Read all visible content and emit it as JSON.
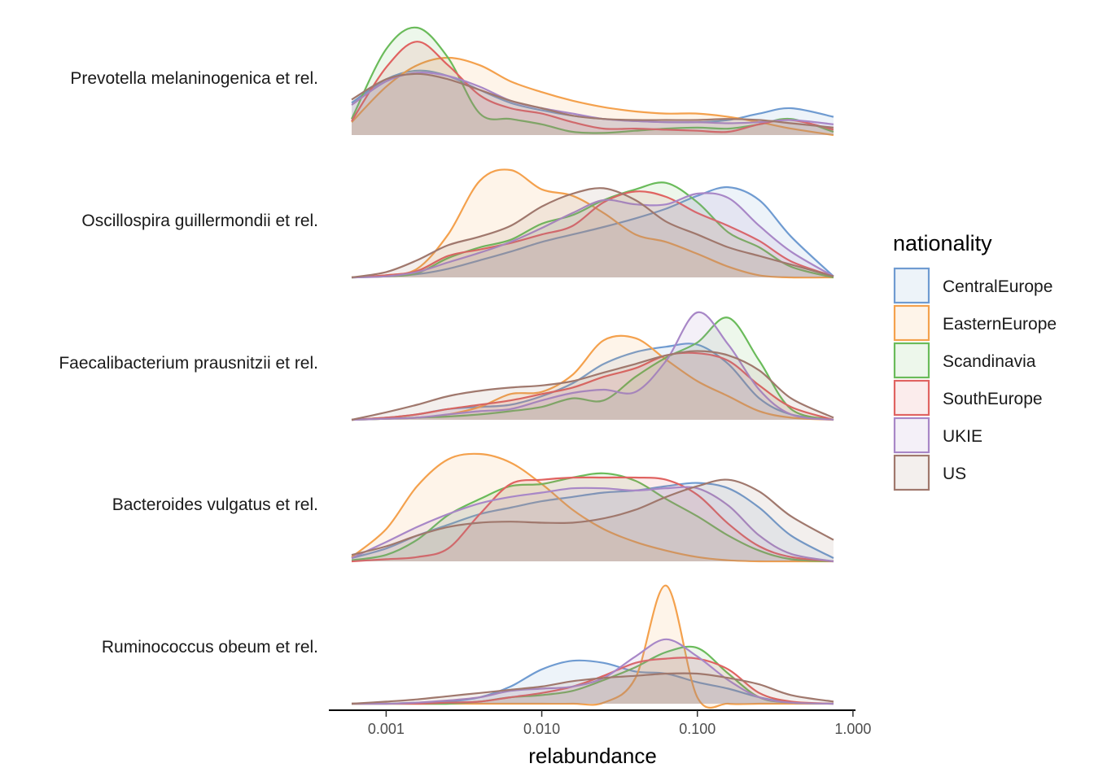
{
  "chart_data": {
    "type": "ridgeline-density",
    "xlabel": "relabundance",
    "x_scale": "log10",
    "xlim": [
      0.0006,
      0.75
    ],
    "x_ticks": [
      {
        "value": 0.001,
        "label": "0.001"
      },
      {
        "value": 0.01,
        "label": "0.010"
      },
      {
        "value": 0.1,
        "label": "0.100"
      },
      {
        "value": 1.0,
        "label": "1.000"
      }
    ],
    "legend": {
      "title": "nationality",
      "placement": "right"
    },
    "series_styles": [
      {
        "name": "CentralEurope",
        "color": "#6f9bd1"
      },
      {
        "name": "EasternEurope",
        "color": "#f4a14d"
      },
      {
        "name": "Scandinavia",
        "color": "#6abb5a"
      },
      {
        "name": "SouthEurope",
        "color": "#e06361"
      },
      {
        "name": "UKIE",
        "color": "#a887c7"
      },
      {
        "name": "US",
        "color": "#a0786d"
      }
    ],
    "x_points": [
      0.0006,
      0.001,
      0.00158,
      0.0025,
      0.004,
      0.0063,
      0.01,
      0.0158,
      0.025,
      0.04,
      0.063,
      0.1,
      0.158,
      0.25,
      0.4,
      0.75
    ],
    "rows": [
      {
        "label": "Prevotella melaninogenica et rel.",
        "series": [
          {
            "name": "CentralEurope",
            "values": [
              0.3,
              0.52,
              0.6,
              0.55,
              0.42,
              0.3,
              0.23,
              0.18,
              0.15,
              0.13,
              0.12,
              0.12,
              0.14,
              0.2,
              0.25,
              0.17
            ]
          },
          {
            "name": "EasternEurope",
            "values": [
              0.12,
              0.45,
              0.65,
              0.72,
              0.65,
              0.5,
              0.4,
              0.32,
              0.26,
              0.22,
              0.2,
              0.2,
              0.17,
              0.12,
              0.06,
              0.0
            ]
          },
          {
            "name": "Scandinavia",
            "values": [
              0.15,
              0.8,
              1.0,
              0.72,
              0.2,
              0.15,
              0.1,
              0.03,
              0.02,
              0.04,
              0.06,
              0.07,
              0.06,
              0.1,
              0.15,
              0.03
            ]
          },
          {
            "name": "SouthEurope",
            "values": [
              0.13,
              0.63,
              0.87,
              0.65,
              0.37,
              0.25,
              0.2,
              0.12,
              0.06,
              0.06,
              0.05,
              0.04,
              0.03,
              0.1,
              0.14,
              0.05
            ]
          },
          {
            "name": "UKIE",
            "values": [
              0.28,
              0.5,
              0.58,
              0.55,
              0.45,
              0.32,
              0.25,
              0.2,
              0.15,
              0.13,
              0.12,
              0.12,
              0.11,
              0.12,
              0.14,
              0.1
            ]
          },
          {
            "name": "US",
            "values": [
              0.33,
              0.52,
              0.57,
              0.52,
              0.42,
              0.32,
              0.25,
              0.18,
              0.15,
              0.14,
              0.14,
              0.14,
              0.15,
              0.14,
              0.11,
              0.07
            ]
          }
        ]
      },
      {
        "label": "Oscillospira guillermondii et rel.",
        "series": [
          {
            "name": "CentralEurope",
            "values": [
              0.0,
              0.01,
              0.03,
              0.08,
              0.16,
              0.24,
              0.33,
              0.4,
              0.47,
              0.55,
              0.64,
              0.76,
              0.84,
              0.72,
              0.38,
              0.01
            ]
          },
          {
            "name": "EasternEurope",
            "values": [
              0.0,
              0.02,
              0.08,
              0.4,
              0.9,
              1.0,
              0.82,
              0.76,
              0.6,
              0.4,
              0.33,
              0.22,
              0.1,
              0.02,
              0.0,
              0.0
            ]
          },
          {
            "name": "Scandinavia",
            "values": [
              0.0,
              0.01,
              0.04,
              0.18,
              0.28,
              0.35,
              0.5,
              0.58,
              0.72,
              0.82,
              0.88,
              0.7,
              0.42,
              0.28,
              0.1,
              0.0
            ]
          },
          {
            "name": "SouthEurope",
            "values": [
              0.0,
              0.02,
              0.06,
              0.2,
              0.26,
              0.32,
              0.4,
              0.48,
              0.7,
              0.8,
              0.75,
              0.6,
              0.48,
              0.34,
              0.15,
              0.01
            ]
          },
          {
            "name": "UKIE",
            "values": [
              0.0,
              0.01,
              0.05,
              0.14,
              0.23,
              0.33,
              0.46,
              0.6,
              0.72,
              0.68,
              0.68,
              0.78,
              0.74,
              0.48,
              0.24,
              0.01
            ]
          },
          {
            "name": "US",
            "values": [
              0.0,
              0.05,
              0.16,
              0.3,
              0.38,
              0.48,
              0.66,
              0.78,
              0.83,
              0.72,
              0.52,
              0.4,
              0.28,
              0.2,
              0.12,
              0.01
            ]
          }
        ]
      },
      {
        "label": "Faecalibacterium prausnitzii et rel.",
        "series": [
          {
            "name": "CentralEurope",
            "values": [
              0.0,
              0.02,
              0.05,
              0.1,
              0.12,
              0.14,
              0.22,
              0.34,
              0.52,
              0.63,
              0.68,
              0.7,
              0.52,
              0.2,
              0.05,
              0.0
            ]
          },
          {
            "name": "EasternEurope",
            "values": [
              0.0,
              0.01,
              0.02,
              0.05,
              0.12,
              0.24,
              0.26,
              0.42,
              0.74,
              0.76,
              0.56,
              0.36,
              0.22,
              0.08,
              0.02,
              0.0
            ]
          },
          {
            "name": "Scandinavia",
            "values": [
              0.0,
              0.01,
              0.02,
              0.03,
              0.05,
              0.08,
              0.12,
              0.2,
              0.18,
              0.4,
              0.58,
              0.72,
              0.95,
              0.55,
              0.1,
              0.0
            ]
          },
          {
            "name": "SouthEurope",
            "values": [
              0.0,
              0.02,
              0.05,
              0.1,
              0.14,
              0.18,
              0.24,
              0.3,
              0.4,
              0.48,
              0.6,
              0.62,
              0.55,
              0.32,
              0.12,
              0.0
            ]
          },
          {
            "name": "UKIE",
            "values": [
              0.0,
              0.01,
              0.02,
              0.05,
              0.08,
              0.1,
              0.18,
              0.25,
              0.28,
              0.26,
              0.55,
              1.0,
              0.7,
              0.28,
              0.05,
              0.0
            ]
          },
          {
            "name": "US",
            "values": [
              0.0,
              0.07,
              0.14,
              0.22,
              0.27,
              0.3,
              0.32,
              0.36,
              0.44,
              0.52,
              0.6,
              0.64,
              0.6,
              0.46,
              0.2,
              0.02
            ]
          }
        ]
      },
      {
        "label": "Bacteroides vulgatus et rel.",
        "series": [
          {
            "name": "CentralEurope",
            "values": [
              0.03,
              0.12,
              0.24,
              0.34,
              0.44,
              0.5,
              0.56,
              0.6,
              0.64,
              0.66,
              0.7,
              0.73,
              0.68,
              0.5,
              0.24,
              0.03
            ]
          },
          {
            "name": "EasternEurope",
            "values": [
              0.04,
              0.3,
              0.7,
              0.95,
              1.0,
              0.92,
              0.72,
              0.48,
              0.3,
              0.18,
              0.1,
              0.04,
              0.01,
              0.0,
              0.0,
              0.0
            ]
          },
          {
            "name": "Scandinavia",
            "values": [
              0.01,
              0.06,
              0.2,
              0.43,
              0.58,
              0.7,
              0.72,
              0.78,
              0.82,
              0.75,
              0.58,
              0.42,
              0.24,
              0.1,
              0.02,
              0.0
            ]
          },
          {
            "name": "SouthEurope",
            "values": [
              0.0,
              0.02,
              0.04,
              0.12,
              0.44,
              0.72,
              0.76,
              0.78,
              0.78,
              0.78,
              0.76,
              0.62,
              0.35,
              0.14,
              0.04,
              0.0
            ]
          },
          {
            "name": "UKIE",
            "values": [
              0.03,
              0.18,
              0.32,
              0.44,
              0.54,
              0.6,
              0.64,
              0.68,
              0.68,
              0.66,
              0.68,
              0.68,
              0.52,
              0.24,
              0.07,
              0.0
            ]
          },
          {
            "name": "US",
            "values": [
              0.06,
              0.14,
              0.24,
              0.32,
              0.36,
              0.37,
              0.36,
              0.36,
              0.4,
              0.48,
              0.6,
              0.7,
              0.76,
              0.65,
              0.42,
              0.2
            ]
          }
        ]
      },
      {
        "label": "Ruminococcus obeum et rel.",
        "series": [
          {
            "name": "CentralEurope",
            "values": [
              0.0,
              0.0,
              0.01,
              0.02,
              0.06,
              0.16,
              0.32,
              0.4,
              0.38,
              0.3,
              0.28,
              0.2,
              0.14,
              0.06,
              0.01,
              0.0
            ]
          },
          {
            "name": "EasternEurope",
            "values": [
              0.0,
              0.0,
              0.0,
              0.0,
              0.0,
              0.0,
              0.0,
              0.0,
              0.01,
              0.24,
              1.1,
              0.06,
              0.0,
              0.0,
              0.0,
              0.0
            ]
          },
          {
            "name": "Scandinavia",
            "values": [
              0.0,
              0.0,
              0.0,
              0.0,
              0.02,
              0.06,
              0.08,
              0.12,
              0.22,
              0.34,
              0.48,
              0.52,
              0.28,
              0.06,
              0.01,
              0.0
            ]
          },
          {
            "name": "SouthEurope",
            "values": [
              0.0,
              0.0,
              0.0,
              0.01,
              0.02,
              0.06,
              0.1,
              0.16,
              0.26,
              0.38,
              0.42,
              0.42,
              0.32,
              0.1,
              0.02,
              0.0
            ]
          },
          {
            "name": "UKIE",
            "values": [
              0.0,
              0.0,
              0.01,
              0.03,
              0.06,
              0.12,
              0.14,
              0.16,
              0.24,
              0.44,
              0.6,
              0.44,
              0.22,
              0.06,
              0.01,
              0.0
            ]
          },
          {
            "name": "US",
            "values": [
              0.0,
              0.02,
              0.04,
              0.07,
              0.1,
              0.13,
              0.16,
              0.21,
              0.24,
              0.26,
              0.28,
              0.28,
              0.24,
              0.18,
              0.08,
              0.02
            ]
          }
        ]
      }
    ]
  }
}
